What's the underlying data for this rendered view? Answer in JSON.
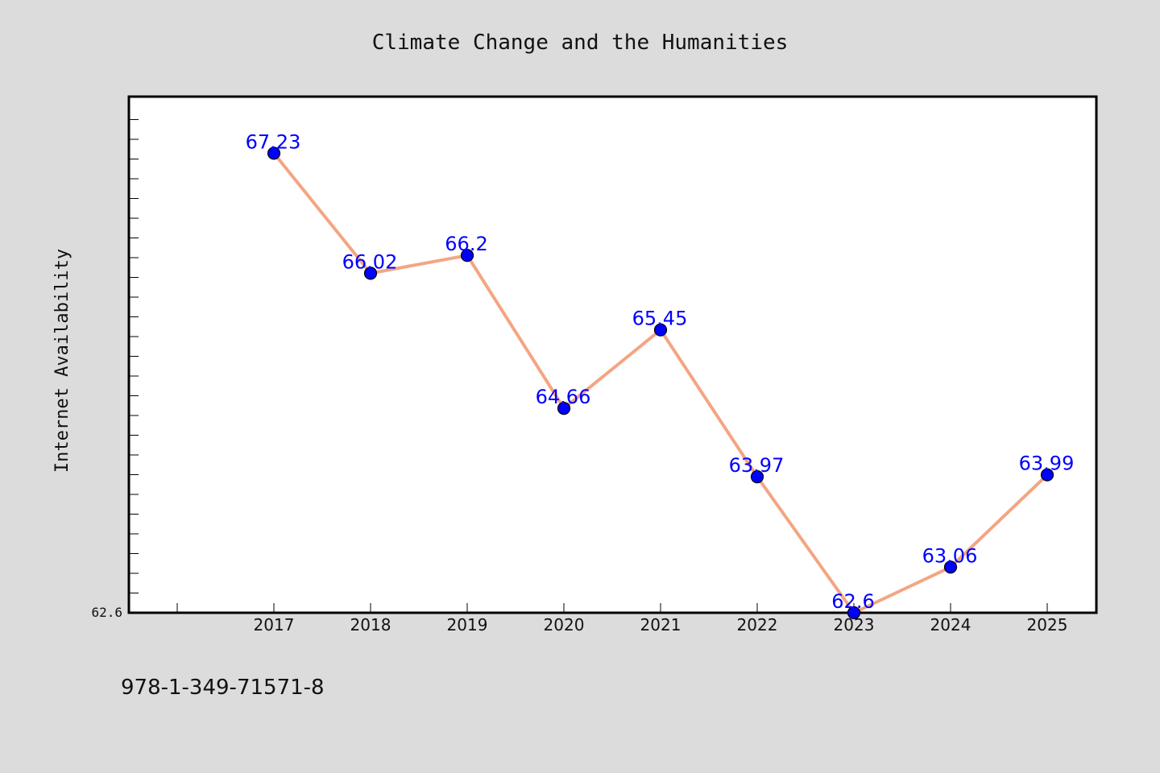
{
  "chart_data": {
    "type": "line",
    "title": "Climate Change and the Humanities",
    "xlabel": "",
    "ylabel": "Internet Availability",
    "categories": [
      "2017",
      "2018",
      "2019",
      "2020",
      "2021",
      "2022",
      "2023",
      "2024",
      "2025"
    ],
    "series": [
      {
        "values": [
          67.23,
          66.02,
          66.2,
          64.66,
          65.45,
          63.97,
          62.6,
          63.06,
          63.99
        ],
        "labels": [
          "67.23",
          "66.02",
          "66.2",
          "64.66",
          "65.45",
          "63.97",
          "62.6",
          "63.06",
          "63.99"
        ],
        "line_color": "#f4a582",
        "marker_color": "#0000ff",
        "label_color": "#0000ff"
      }
    ],
    "ytick_labels": [
      "62.6"
    ],
    "ylim": [
      62.6,
      67.8
    ],
    "grid": false,
    "legend": "none"
  },
  "footer": {
    "isbn": "978-1-349-71571-8"
  },
  "colors": {
    "background": "#dcdcdc",
    "plot_background": "#ffffff",
    "axis": "#000000"
  }
}
